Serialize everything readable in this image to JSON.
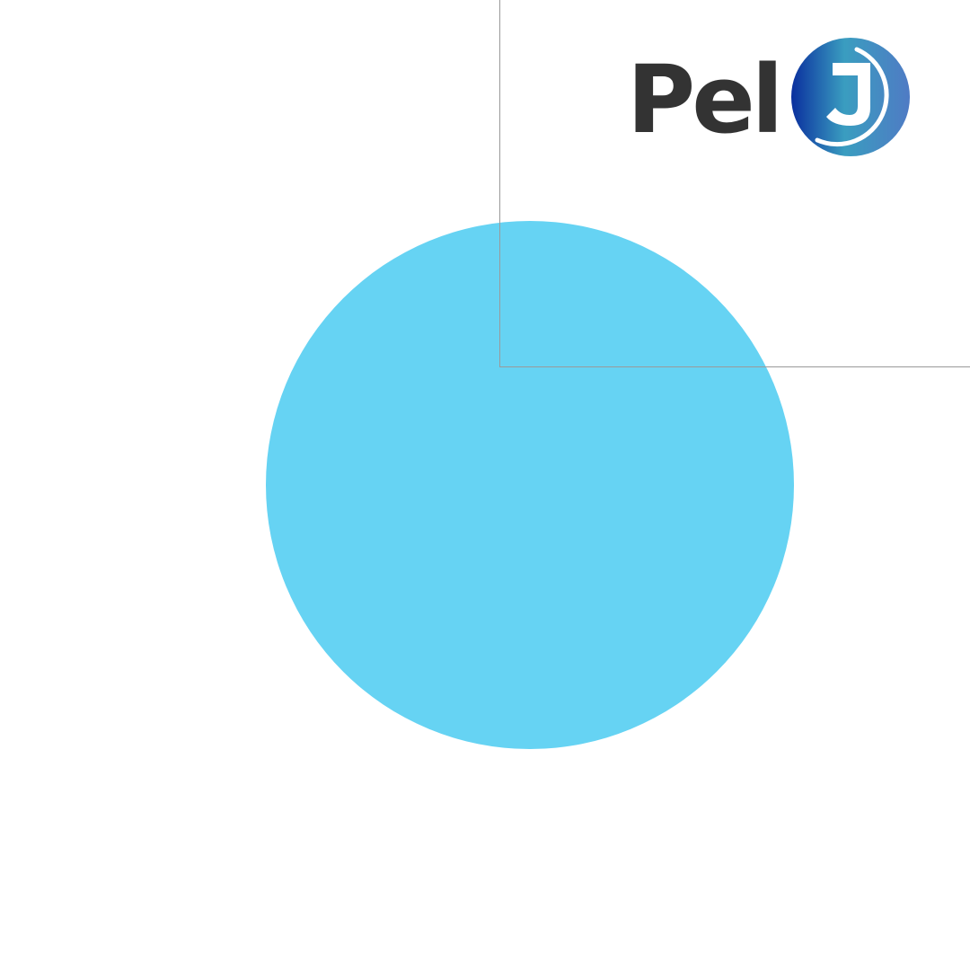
{
  "logo": {
    "wordmark": "Pel",
    "monogram": "J",
    "wordmark_color": "#333333",
    "badge_colors": [
      "#0a2f9e",
      "#3a9dc0",
      "#4f7bc4"
    ]
  },
  "decor": {
    "circle_color": "#66d3f3",
    "line_color": "#9a9a9a",
    "background": "#ffffff"
  }
}
